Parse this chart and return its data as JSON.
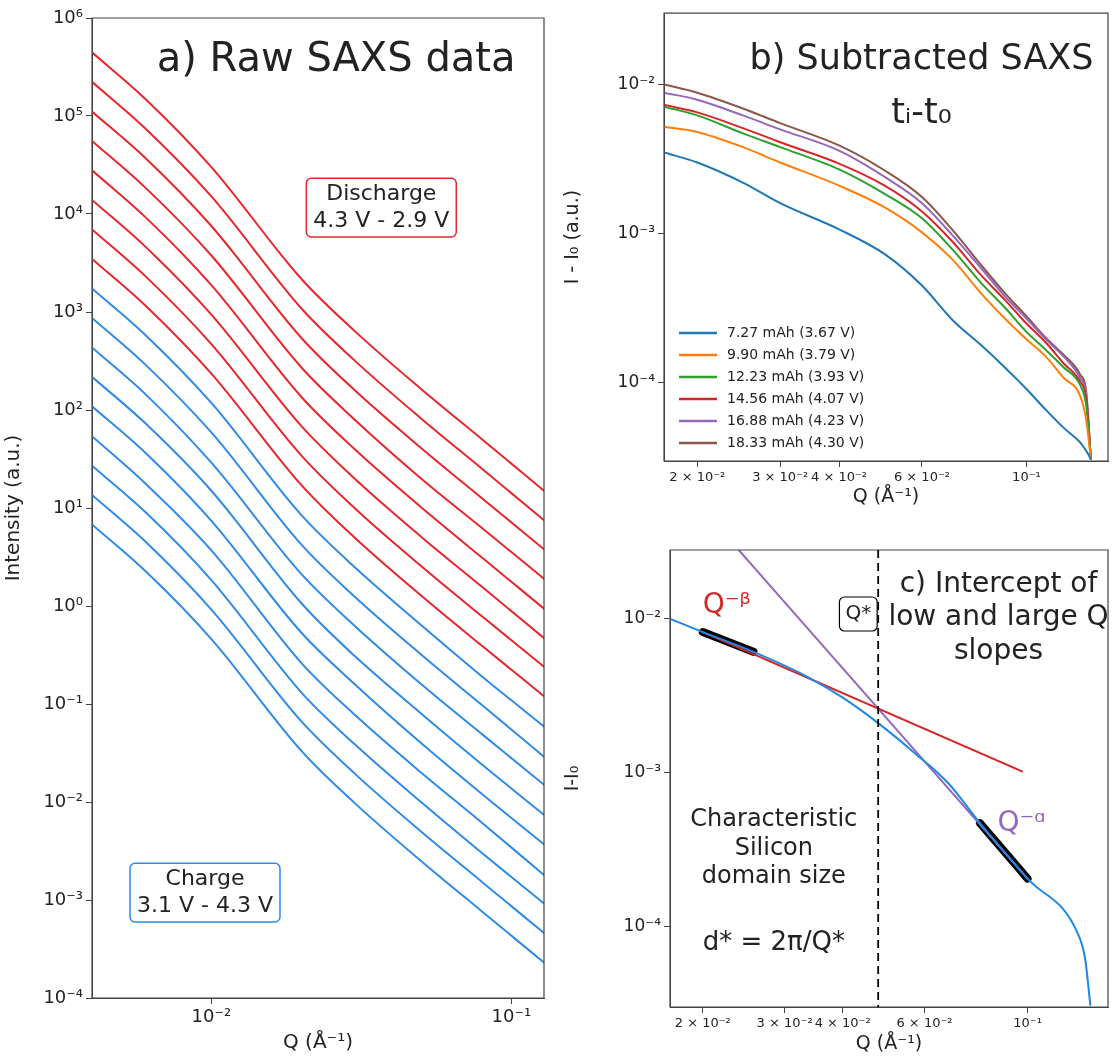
{
  "chart_data": [
    {
      "type": "line",
      "title": "a) Raw SAXS data",
      "xlabel": "Q (Å⁻¹)",
      "ylabel": "Intensity (a.u.)",
      "log": "xy",
      "grid": false,
      "legend": false,
      "marker": "none",
      "line_style": "solid",
      "x": [
        0.004,
        0.006,
        0.01,
        0.02,
        0.03,
        0.05,
        0.08,
        0.1285
      ],
      "xlim": [
        0.004,
        0.1285
      ],
      "xticks": [
        {
          "value": 0.01,
          "label": "10⁻²"
        },
        {
          "value": 0.1,
          "label": "10⁻¹"
        }
      ],
      "ylim": [
        0.0001,
        1000000
      ],
      "yticks": [
        {
          "value": 0.0001,
          "label": "10⁻⁴"
        },
        {
          "value": 0.001,
          "label": "10⁻³"
        },
        {
          "value": 0.01,
          "label": "10⁻²"
        },
        {
          "value": 0.1,
          "label": "10⁻¹"
        },
        {
          "value": 1,
          "label": "10⁰"
        },
        {
          "value": 10,
          "label": "10¹"
        },
        {
          "value": 100,
          "label": "10²"
        },
        {
          "value": 1000,
          "label": "10³"
        },
        {
          "value": 10000,
          "label": "10⁴"
        },
        {
          "value": 100000,
          "label": "10⁵"
        },
        {
          "value": 1000000,
          "label": "10⁶"
        }
      ],
      "annotations": [
        "Discharge\n4.3 V - 2.9 V",
        "Charge\n3.1 V - 4.3 V"
      ],
      "series": [
        {
          "color": "#2f8be6",
          "values": [
            6.8,
            2.3,
            0.46,
            0.033,
            0.0098,
            0.0025,
            0.00076,
            0.00023
          ]
        },
        {
          "color": "#2f8be6",
          "values": [
            13.6,
            4.6,
            0.92,
            0.066,
            0.0196,
            0.005,
            0.00152,
            0.00046
          ]
        },
        {
          "color": "#2f8be6",
          "values": [
            27,
            9.2,
            1.84,
            0.13,
            0.039,
            0.01,
            0.003,
            0.00092
          ]
        },
        {
          "color": "#2f8be6",
          "values": [
            54,
            18,
            3.7,
            0.26,
            0.078,
            0.02,
            0.0061,
            0.0018
          ]
        },
        {
          "color": "#2f8be6",
          "values": [
            109,
            37,
            7.4,
            0.53,
            0.16,
            0.04,
            0.012,
            0.0037
          ]
        },
        {
          "color": "#2f8be6",
          "values": [
            218,
            74,
            15,
            1.06,
            0.31,
            0.08,
            0.024,
            0.0074
          ]
        },
        {
          "color": "#2f8be6",
          "values": [
            435,
            147,
            29,
            2.1,
            0.63,
            0.16,
            0.049,
            0.015
          ]
        },
        {
          "color": "#2f8be6",
          "values": [
            870,
            294,
            59,
            4.2,
            1.25,
            0.32,
            0.097,
            0.029
          ]
        },
        {
          "color": "#2f8be6",
          "values": [
            1740,
            590,
            118,
            8.4,
            2.5,
            0.64,
            0.19,
            0.059
          ]
        },
        {
          "color": "#e8262b",
          "values": [
            3480,
            1180,
            235,
            17,
            5,
            1.28,
            0.39,
            0.12
          ]
        },
        {
          "color": "#e8262b",
          "values": [
            6960,
            2350,
            470,
            34,
            10,
            2.56,
            0.78,
            0.24
          ]
        },
        {
          "color": "#e8262b",
          "values": [
            13900,
            4700,
            940,
            68,
            20,
            5.1,
            1.56,
            0.47
          ]
        },
        {
          "color": "#e8262b",
          "values": [
            27900,
            9400,
            1880,
            135,
            40,
            10.2,
            3.1,
            0.94
          ]
        },
        {
          "color": "#e8262b",
          "values": [
            55700,
            18800,
            3770,
            270,
            80,
            20,
            6.2,
            1.9
          ]
        },
        {
          "color": "#e8262b",
          "values": [
            111000,
            37700,
            7540,
            540,
            160,
            41,
            12.5,
            3.8
          ]
        },
        {
          "color": "#e8262b",
          "values": [
            223000,
            75400,
            15100,
            1080,
            321,
            82,
            25,
            7.5
          ]
        },
        {
          "color": "#e8262b",
          "values": [
            446000,
            151000,
            30100,
            2160,
            642,
            164,
            50,
            15
          ]
        }
      ]
    },
    {
      "type": "line",
      "title": "b) Subtracted SAXS",
      "subtitle": "tᵢ-t₀",
      "xlabel": "Q (Å⁻¹)",
      "ylabel": "I - I₀ (a.u.)",
      "log": "xy",
      "grid": false,
      "legend": "bottom left",
      "marker": "none",
      "line_style": "solid",
      "x": [
        0.017,
        0.02,
        0.025,
        0.03,
        0.04,
        0.05,
        0.06,
        0.07,
        0.08,
        0.09,
        0.1,
        0.11,
        0.12,
        0.13,
        0.134,
        0.137
      ],
      "xlim": [
        0.017,
        0.149
      ],
      "xticks": [
        {
          "value": 0.02,
          "label": "2 × 10⁻²"
        },
        {
          "value": 0.03,
          "label": "3 × 10⁻²"
        },
        {
          "value": 0.04,
          "label": "4 × 10⁻²"
        },
        {
          "value": 0.06,
          "label": "6 × 10⁻²"
        },
        {
          "value": 0.1,
          "label": "10⁻¹"
        }
      ],
      "ylim": [
        3e-05,
        0.03
      ],
      "yticks": [
        {
          "value": 0.0001,
          "label": "10⁻⁴"
        },
        {
          "value": 0.001,
          "label": "10⁻³"
        },
        {
          "value": 0.01,
          "label": "10⁻²"
        }
      ],
      "series": [
        {
          "name": "7.27 mAh (3.67 V)",
          "color": "#1f77b4",
          "values": [
            0.0035,
            0.003,
            0.0022,
            0.0016,
            0.00107,
            0.00073,
            0.00045,
            0.00026,
            0.00018,
            0.000127,
            9.1e-05,
            6.6e-05,
            5e-05,
            4e-05,
            3.5e-05,
            3.1e-05
          ]
        },
        {
          "name": "9.90 mAh (3.79 V)",
          "color": "#ff7f0e",
          "values": [
            0.0052,
            0.0048,
            0.0038,
            0.003,
            0.0021,
            0.0015,
            0.00102,
            0.00066,
            0.0004,
            0.00027,
            0.000196,
            0.00015,
            0.000108,
            8.2e-05,
            5.6e-05,
            3.1e-05
          ]
        },
        {
          "name": "12.23 mAh (3.93 V)",
          "color": "#2ca02c",
          "values": [
            0.0071,
            0.0062,
            0.0047,
            0.0038,
            0.0027,
            0.00185,
            0.00127,
            0.00077,
            0.00047,
            0.00032,
            0.00022,
            0.000166,
            0.000127,
            9.7e-05,
            7e-05,
            3.1e-05
          ]
        },
        {
          "name": "14.56 mAh (4.07 V)",
          "color": "#d62728",
          "values": [
            0.0073,
            0.0065,
            0.0051,
            0.0041,
            0.00295,
            0.0021,
            0.00141,
            0.00087,
            0.00053,
            0.00036,
            0.00025,
            0.000186,
            0.000135,
            0.000102,
            7.8e-05,
            3.1e-05
          ]
        },
        {
          "name": "16.88 mAh (4.23 V)",
          "color": "#9467bd",
          "values": [
            0.0088,
            0.0079,
            0.0062,
            0.005,
            0.0036,
            0.0024,
            0.0016,
            0.00096,
            0.00059,
            0.00038,
            0.00027,
            0.000196,
            0.00015,
            0.000108,
            8.2e-05,
            3.1e-05
          ]
        },
        {
          "name": "18.33 mAh (4.30 V)",
          "color": "#8c564b",
          "values": [
            0.01,
            0.0088,
            0.0069,
            0.0055,
            0.0039,
            0.00265,
            0.00176,
            0.00104,
            0.00062,
            0.0004,
            0.00028,
            0.0002,
            0.000154,
            0.000114,
            8.6e-05,
            3.1e-05
          ]
        }
      ]
    },
    {
      "type": "line",
      "title": "c) Intercept of low and large Q slopes",
      "xlabel": "Q (Å⁻¹)",
      "ylabel": "I-I₀",
      "log": "xy",
      "grid": false,
      "legend": false,
      "marker": "none",
      "line_style": "solid",
      "xlim": [
        0.017,
        0.149
      ],
      "xticks": [
        {
          "value": 0.02,
          "label": "2 × 10⁻²"
        },
        {
          "value": 0.03,
          "label": "3 × 10⁻²"
        },
        {
          "value": 0.04,
          "label": "4 × 10⁻²"
        },
        {
          "value": 0.06,
          "label": "6 × 10⁻²"
        },
        {
          "value": 0.1,
          "label": "10⁻¹"
        }
      ],
      "ylim": [
        3e-05,
        0.028
      ],
      "yticks": [
        {
          "value": 0.0001,
          "label": "10⁻⁴"
        },
        {
          "value": 0.001,
          "label": "10⁻³"
        },
        {
          "value": 0.01,
          "label": "10⁻²"
        }
      ],
      "ref_lines": [
        {
          "axis": "x",
          "value": 0.0477,
          "label": "Q*",
          "color": "#000000",
          "line_style": "dashed"
        }
      ],
      "annotations": [
        "Characteristic Silicon domain size",
        "d* = 2π/Q*"
      ],
      "series": [
        {
          "color": "#1e88e5",
          "x": [
            0.017,
            0.02,
            0.0257,
            0.0336,
            0.0401,
            0.0477,
            0.0567,
            0.0676,
            0.079,
            0.1,
            0.1285,
            0.133,
            0.1365
          ],
          "values": [
            0.01,
            0.0082,
            0.0061,
            0.0042,
            0.00306,
            0.0021,
            0.00137,
            0.00085,
            0.00047,
            0.000205,
            8.9e-05,
            6.2e-05,
            3.1e-05
          ]
        },
        {
          "name": "Q⁻ᵝ",
          "color": "#d62728",
          "x": [
            0.02,
            0.0973
          ],
          "values": [
            0.0082,
            0.00102
          ]
        },
        {
          "name": "Q⁻ᵅ",
          "color": "#9467bd",
          "x": [
            0.0239,
            0.1
          ],
          "values": [
            0.028,
            0.000205
          ]
        },
        {
          "color": "#000000",
          "x": [
            0.02,
            0.0257
          ],
          "values": [
            0.0082,
            0.0061
          ]
        },
        {
          "color": "#000000",
          "x": [
            0.079,
            0.1
          ],
          "values": [
            0.00047,
            0.000205
          ]
        }
      ]
    }
  ]
}
